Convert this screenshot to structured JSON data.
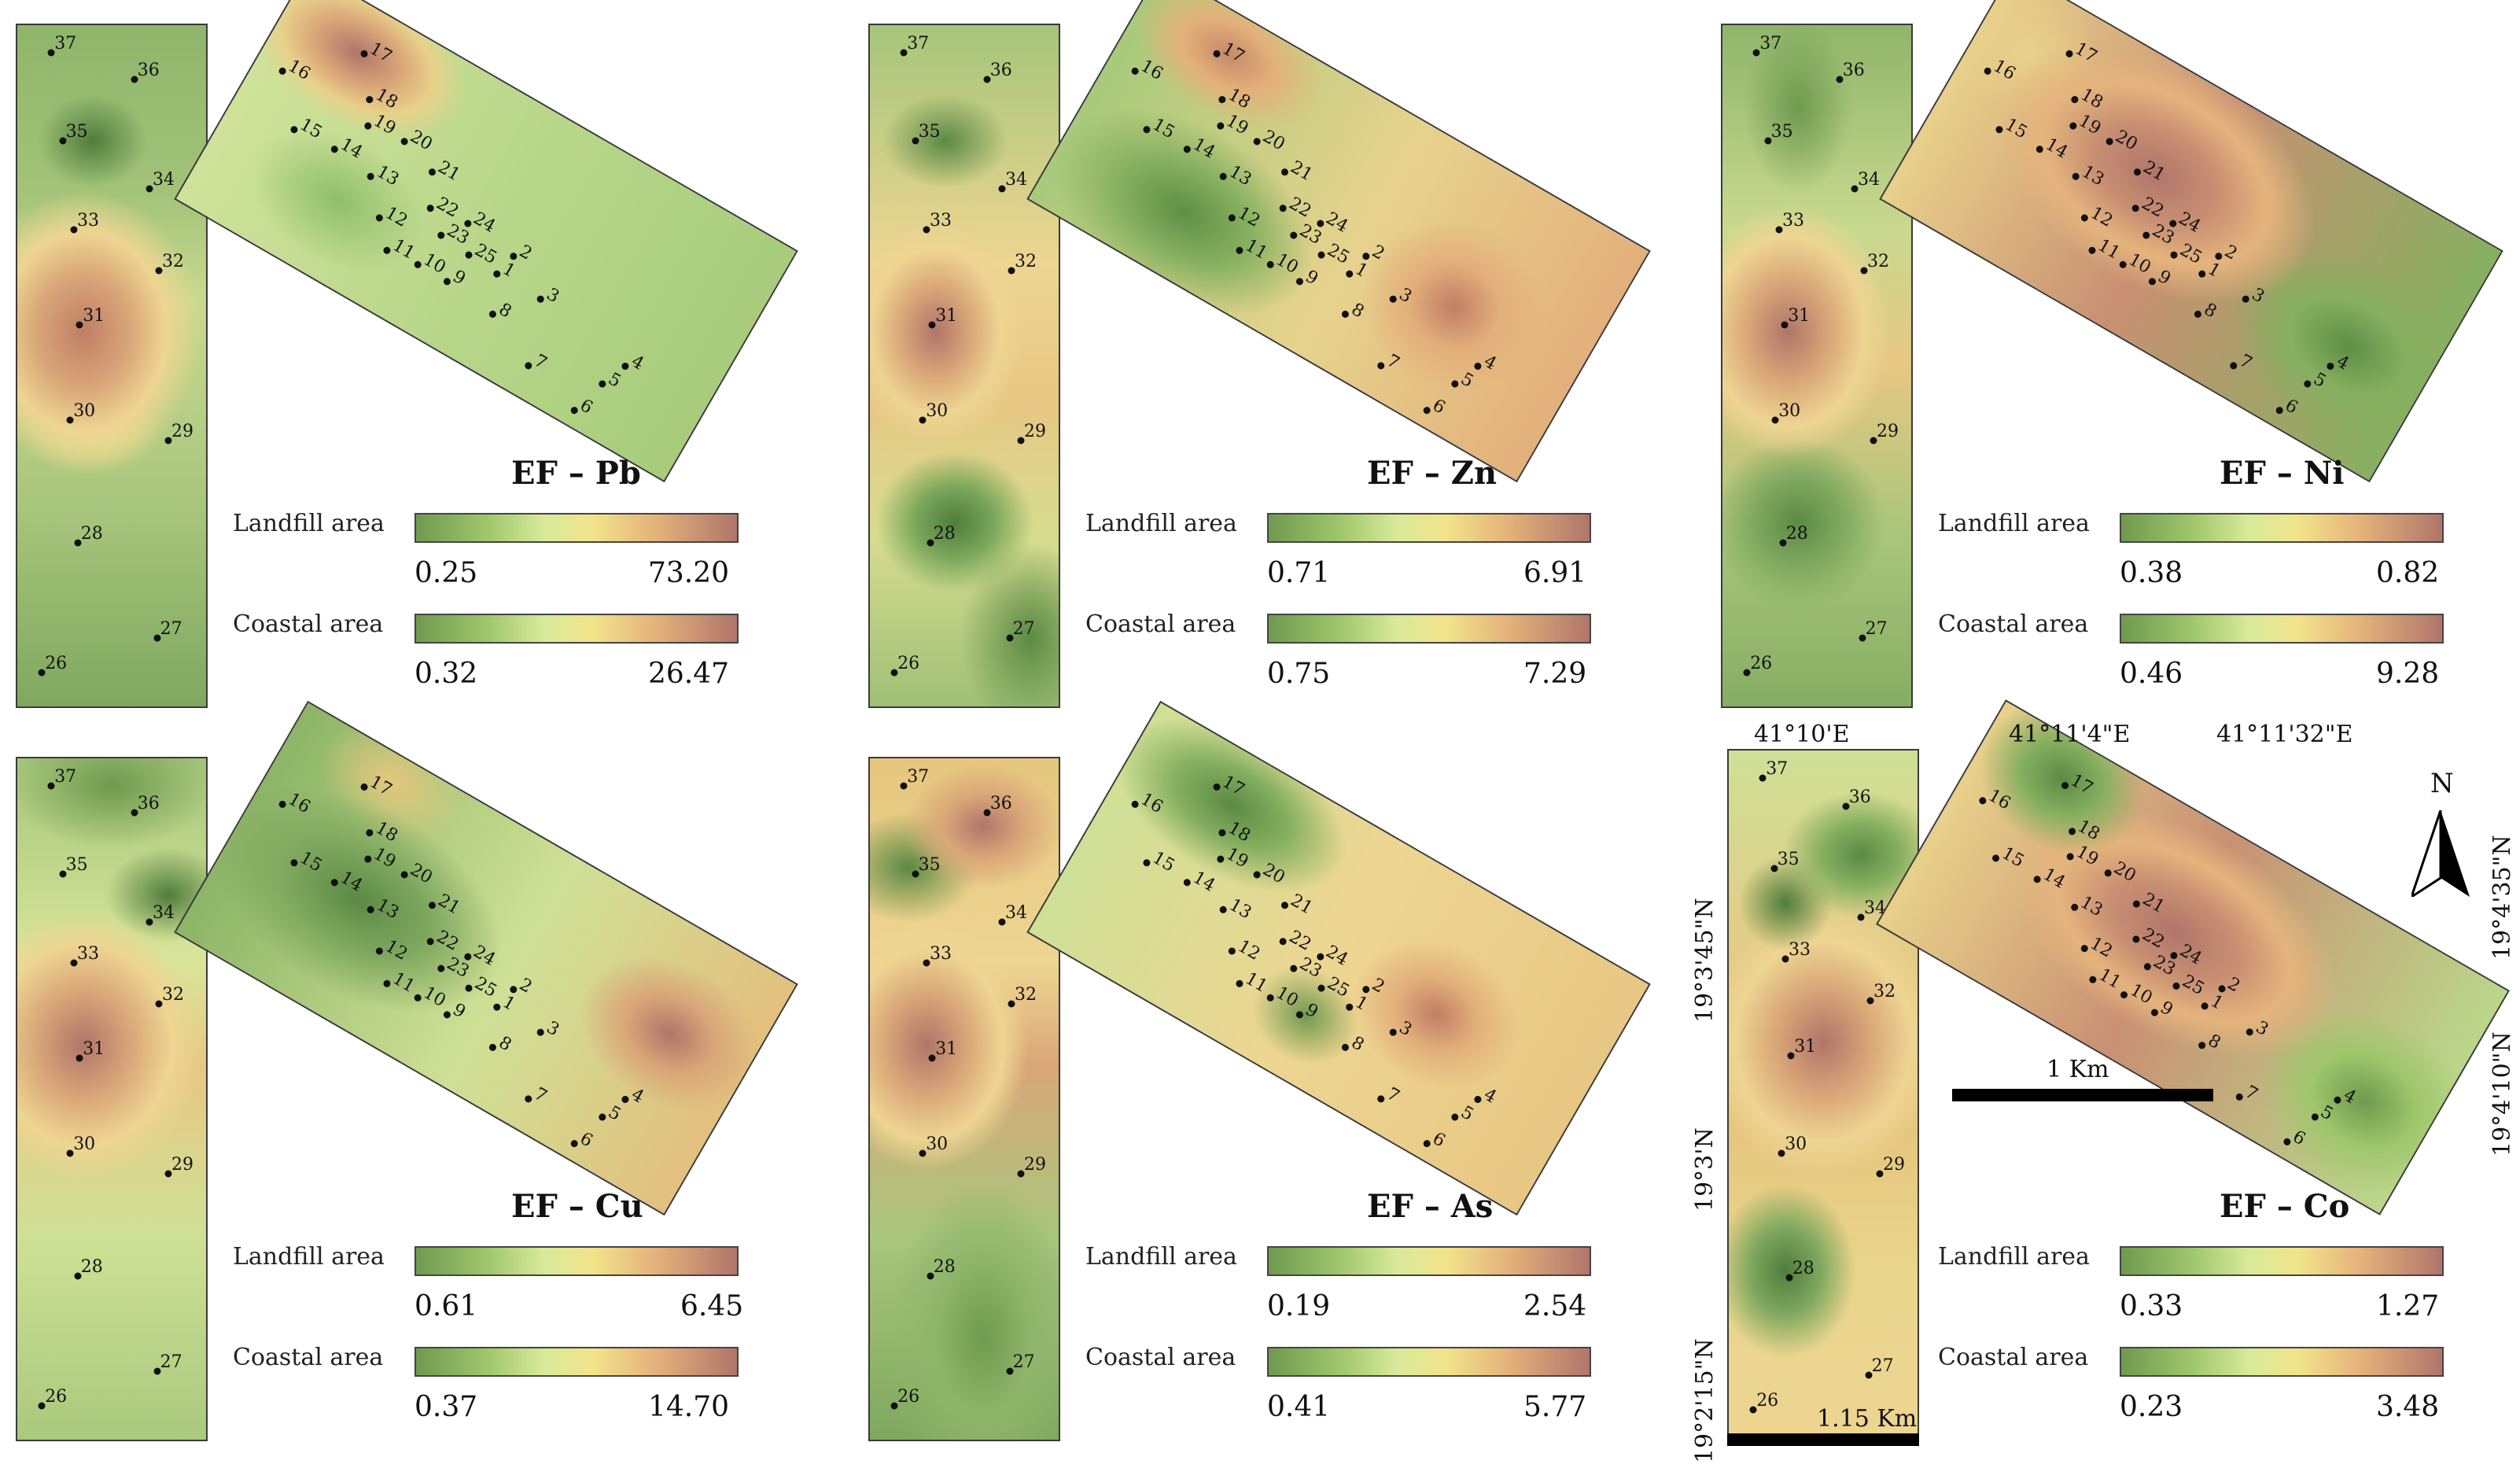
{
  "panels": [
    {
      "title": "EF – Pb",
      "legend": {
        "landfill_label": "Landfill area",
        "landfill_min": "0.25",
        "landfill_max": "73.20",
        "coastal_label": "Coastal area",
        "coastal_min": "0.32",
        "coastal_max": "26.47"
      }
    },
    {
      "title": "EF – Zn",
      "legend": {
        "landfill_label": "Landfill area",
        "landfill_min": "0.71",
        "landfill_max": "6.91",
        "coastal_label": "Coastal area",
        "coastal_min": "0.75",
        "coastal_max": "7.29"
      }
    },
    {
      "title": "EF – Ni",
      "legend": {
        "landfill_label": "Landfill area",
        "landfill_min": "0.38",
        "landfill_max": "0.82",
        "coastal_label": "Coastal area",
        "coastal_min": "0.46",
        "coastal_max": "9.28"
      }
    },
    {
      "title": "EF – Cu",
      "legend": {
        "landfill_label": "Landfill area",
        "landfill_min": "0.61",
        "landfill_max": "6.45",
        "coastal_label": "Coastal area",
        "coastal_min": "0.37",
        "coastal_max": "14.70"
      }
    },
    {
      "title": "EF – As",
      "legend": {
        "landfill_label": "Landfill area",
        "landfill_min": "0.19",
        "landfill_max": "2.54",
        "coastal_label": "Coastal area",
        "coastal_min": "0.41",
        "coastal_max": "5.77"
      }
    },
    {
      "title": "EF – Co",
      "legend": {
        "landfill_label": "Landfill area",
        "landfill_min": "0.33",
        "landfill_max": "1.27",
        "coastal_label": "Coastal area",
        "coastal_min": "0.23",
        "coastal_max": "3.48"
      }
    }
  ],
  "coastal_points": [
    "37",
    "36",
    "35",
    "34",
    "33",
    "32",
    "31",
    "30",
    "29",
    "28",
    "27",
    "26"
  ],
  "landfill_points": [
    "17",
    "16",
    "18",
    "19",
    "20",
    "15",
    "14",
    "21",
    "13",
    "22",
    "24",
    "2",
    "23",
    "25",
    "12",
    "1",
    "3",
    "11",
    "10",
    "9",
    "4",
    "8",
    "5",
    "7",
    "6"
  ],
  "coords": {
    "coastal_lon": "41°10'E",
    "coastal_lat_1": "19°3'45\"N",
    "coastal_lat_2": "19°3'N",
    "coastal_lat_3": "19°2'15\"N",
    "landfill_lon_1": "41°11'4\"E",
    "landfill_lon_2": "41°11'32\"E",
    "landfill_lat_1": "19°4'35\"N",
    "landfill_lat_2": "19°4'10\"N"
  },
  "scalebars": {
    "coastal": "1.15 Km",
    "landfill": "1 Km"
  },
  "north_label": "N",
  "colors": {
    "low": "#6f9a4f",
    "mid": "#f2e48b",
    "high": "#b0756a"
  }
}
